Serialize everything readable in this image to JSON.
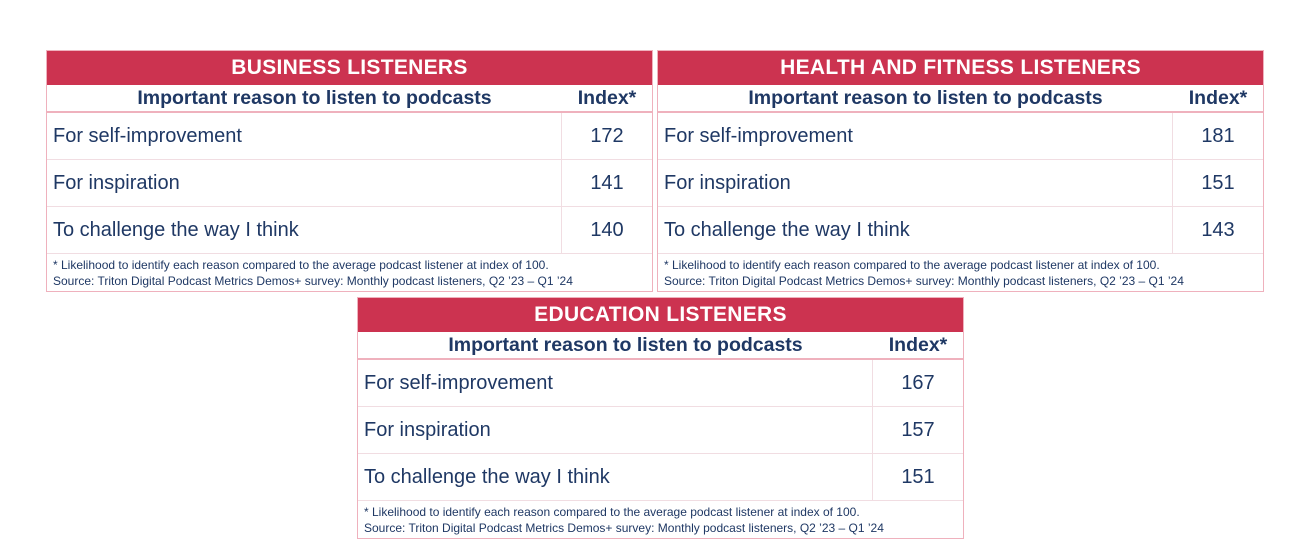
{
  "tables": [
    {
      "title": "BUSINESS LISTENERS",
      "header_reason": "Important reason to listen to podcasts",
      "header_index": "Index*",
      "rows": [
        {
          "reason": "For self-improvement",
          "index": "172"
        },
        {
          "reason": "For inspiration",
          "index": "141"
        },
        {
          "reason": "To challenge the way I think",
          "index": "140"
        }
      ],
      "note": "* Likelihood to identify each reason compared to the average podcast listener at index of 100.",
      "source": "Source: Triton Digital Podcast Metrics Demos+ survey:  Monthly podcast listeners, Q2 ’23 – Q1 ’24"
    },
    {
      "title": "HEALTH AND FITNESS LISTENERS",
      "header_reason": "Important reason to listen to podcasts",
      "header_index": "Index*",
      "rows": [
        {
          "reason": "For self-improvement",
          "index": "181"
        },
        {
          "reason": "For inspiration",
          "index": "151"
        },
        {
          "reason": "To challenge the way I think",
          "index": "143"
        }
      ],
      "note": "* Likelihood to identify each reason compared to the average podcast listener at index of 100.",
      "source": "Source: Triton Digital Podcast Metrics Demos+ survey:  Monthly podcast listeners, Q2 ’23 – Q1 ’24"
    },
    {
      "title": "EDUCATION LISTENERS",
      "header_reason": "Important reason to listen to podcasts",
      "header_index": "Index*",
      "rows": [
        {
          "reason": "For self-improvement",
          "index": "167"
        },
        {
          "reason": "For inspiration",
          "index": "157"
        },
        {
          "reason": "To challenge the way I think",
          "index": "151"
        }
      ],
      "note": "* Likelihood to identify each reason compared to the average podcast listener at index of 100.",
      "source": "Source: Triton Digital Podcast Metrics Demos+ survey:  Monthly podcast listeners, Q2 ’23 – Q1 ’24"
    }
  ],
  "colors": {
    "title_bg": "#cc3350",
    "text": "#1f3864",
    "border": "#efb1bd"
  }
}
